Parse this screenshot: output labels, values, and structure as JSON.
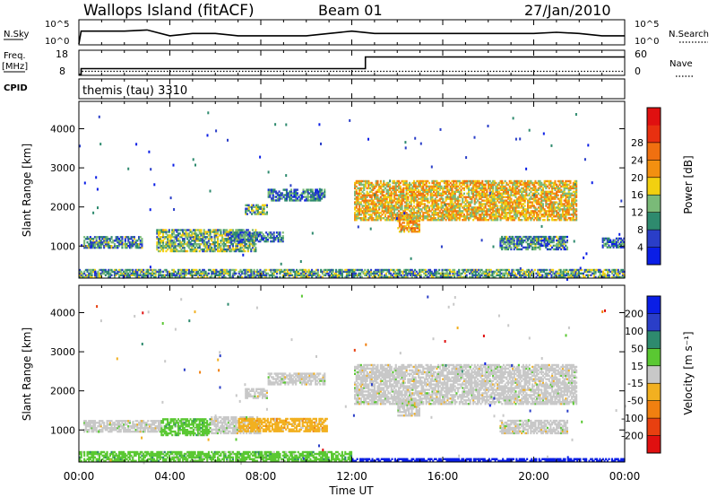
{
  "header": {
    "station": "Wallops Island (fitACF)",
    "beam": "Beam 01",
    "date": "27/Jan/2010"
  },
  "nsky_panel": {
    "left_label": "N.Sky",
    "left_ticks": [
      "10^5",
      "10^0"
    ],
    "right_ticks": [
      "10^5",
      "10^0"
    ],
    "right_label": "N.Search",
    "right_legend_style": "dotted"
  },
  "freq_panel": {
    "left_label_1": "Freq.",
    "left_label_2": "[MHz]",
    "left_ticks": [
      "18",
      "8"
    ],
    "left_range": [
      8,
      18
    ],
    "right_ticks": [
      "60",
      "0"
    ],
    "right_range": [
      0,
      60
    ],
    "right_label": "Nave",
    "right_legend_style": "dotted"
  },
  "cpid_panel": {
    "label": "CPID",
    "text": "themis (tau) 3310"
  },
  "time_axis": {
    "xlabel": "Time UT",
    "ticks": [
      "00:00",
      "04:00",
      "08:00",
      "12:00",
      "16:00",
      "20:00",
      "00:00"
    ],
    "tick_hours": [
      0,
      4,
      8,
      12,
      16,
      20,
      24
    ],
    "range_hours": [
      0,
      24
    ]
  },
  "chart_data": [
    {
      "type": "line",
      "title": "N.Sky / N.Search",
      "x_hours": [
        0,
        0.1,
        0.2,
        1,
        2,
        3,
        4,
        5,
        6,
        7,
        8,
        9,
        10,
        11,
        12,
        13,
        14,
        15,
        16,
        17,
        18,
        19,
        20,
        21,
        22,
        23,
        24
      ],
      "series": [
        {
          "name": "N.Sky",
          "style": "solid",
          "level": [
            0.0,
            0.55,
            0.55,
            0.55,
            0.55,
            0.6,
            0.35,
            0.45,
            0.45,
            0.35,
            0.35,
            0.35,
            0.35,
            0.45,
            0.55,
            0.45,
            0.45,
            0.45,
            0.45,
            0.45,
            0.45,
            0.45,
            0.45,
            0.5,
            0.45,
            0.35,
            0.35
          ]
        }
      ]
    },
    {
      "type": "line",
      "title": "Freq. / Nave",
      "series": [
        {
          "name": "Freq.",
          "axis": "left",
          "style": "solid",
          "x_hours": [
            0,
            0.1,
            0.1,
            12.6,
            12.6,
            24
          ],
          "values": [
            8,
            8,
            10.5,
            10.5,
            15.5,
            15.5
          ]
        },
        {
          "name": "Nave",
          "axis": "right",
          "style": "dotted",
          "x_hours": [
            0,
            0.1,
            0.1,
            24
          ],
          "values": [
            0,
            0,
            8,
            8
          ]
        }
      ]
    },
    {
      "type": "heatmap",
      "ylabel": "Slant Range [km]",
      "yticks": [
        "1000",
        "2000",
        "3000",
        "4000"
      ],
      "ytick_values": [
        1000,
        2000,
        3000,
        4000
      ],
      "ylim": [
        180,
        4700
      ],
      "xlabel": "Time UT",
      "colorbar": {
        "label": "Power [dB]",
        "ticks": [
          "4",
          "8",
          "12",
          "16",
          "20",
          "24",
          "28"
        ],
        "colors": [
          "#0a1ee6",
          "#2a3ec8",
          "#2e8a6e",
          "#7aba78",
          "#f2d010",
          "#f39010",
          "#f07010",
          "#e83010",
          "#e01010"
        ]
      },
      "echo_regions": [
        {
          "t0": 0.2,
          "t1": 2.8,
          "r0": 940,
          "r1": 1230,
          "level": 0.25
        },
        {
          "t0": 3.4,
          "t1": 7.8,
          "r0": 850,
          "r1": 1400,
          "level": 0.35
        },
        {
          "t0": 6.6,
          "t1": 9.0,
          "r0": 1100,
          "r1": 1350,
          "level": 0.2
        },
        {
          "t0": 7.3,
          "t1": 8.3,
          "r0": 1800,
          "r1": 2050,
          "level": 0.3
        },
        {
          "t0": 8.3,
          "t1": 10.8,
          "r0": 2150,
          "r1": 2450,
          "level": 0.2
        },
        {
          "t0": 12.1,
          "t1": 21.9,
          "r0": 1650,
          "r1": 2650,
          "level": 0.55
        },
        {
          "t0": 14.0,
          "t1": 15.0,
          "r0": 1350,
          "r1": 1800,
          "level": 0.6
        },
        {
          "t0": 18.5,
          "t1": 21.5,
          "r0": 900,
          "r1": 1250,
          "level": 0.25
        },
        {
          "t0": 0.0,
          "t1": 24.0,
          "r0": 190,
          "r1": 400,
          "level": 0.3
        },
        {
          "t0": 23.0,
          "t1": 24.0,
          "r0": 950,
          "r1": 1200,
          "level": 0.2
        }
      ]
    },
    {
      "type": "heatmap",
      "ylabel": "Slant Range [km]",
      "yticks": [
        "1000",
        "2000",
        "3000",
        "4000"
      ],
      "ytick_values": [
        1000,
        2000,
        3000,
        4000
      ],
      "ylim": [
        180,
        4700
      ],
      "xlabel": "Time UT",
      "colorbar": {
        "label": "Velocity [m s⁻¹]",
        "ticks": [
          "200",
          "100",
          "50",
          "15",
          "-15",
          "-50",
          "-100",
          "-200"
        ],
        "colors": [
          "#0a1ee6",
          "#2a3ec8",
          "#2e8a6e",
          "#5ac832",
          "#c8c8c8",
          "#f2b020",
          "#f08010",
          "#e84010",
          "#e01010"
        ]
      },
      "echo_regions": [
        {
          "t0": 0.2,
          "t1": 3.6,
          "r0": 940,
          "r1": 1230,
          "color_index": 4
        },
        {
          "t0": 3.6,
          "t1": 5.8,
          "r0": 850,
          "r1": 1300,
          "color_index": 3
        },
        {
          "t0": 5.8,
          "t1": 8.0,
          "r0": 900,
          "r1": 1350,
          "color_index": 4
        },
        {
          "t0": 7.0,
          "t1": 10.9,
          "r0": 950,
          "r1": 1300,
          "color_index": 5
        },
        {
          "t0": 7.3,
          "t1": 8.3,
          "r0": 1800,
          "r1": 2050,
          "color_index": 4
        },
        {
          "t0": 8.3,
          "t1": 10.8,
          "r0": 2150,
          "r1": 2450,
          "color_index": 4
        },
        {
          "t0": 12.1,
          "t1": 21.9,
          "r0": 1650,
          "r1": 2650,
          "color_index": 4
        },
        {
          "t0": 14.0,
          "t1": 15.0,
          "r0": 1350,
          "r1": 1800,
          "color_index": 4
        },
        {
          "t0": 18.5,
          "t1": 21.5,
          "r0": 900,
          "r1": 1250,
          "color_index": 4
        },
        {
          "t0": 0.0,
          "t1": 12.0,
          "r0": 190,
          "r1": 450,
          "color_index": 3
        },
        {
          "t0": 12.0,
          "t1": 24.0,
          "r0": 190,
          "r1": 260,
          "color_index": 0
        }
      ]
    }
  ]
}
